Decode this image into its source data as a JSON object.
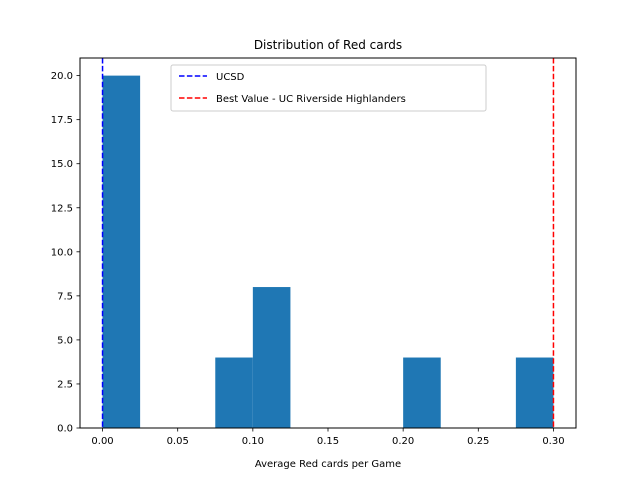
{
  "chart_data": {
    "type": "bar",
    "title": "Distribution of Red cards",
    "xlabel": "Average Red cards per Game",
    "ylabel": "",
    "bins": [
      {
        "start": 0.0,
        "end": 0.025,
        "count": 20
      },
      {
        "start": 0.025,
        "end": 0.05,
        "count": 0
      },
      {
        "start": 0.05,
        "end": 0.075,
        "count": 0
      },
      {
        "start": 0.075,
        "end": 0.1,
        "count": 4
      },
      {
        "start": 0.1,
        "end": 0.125,
        "count": 8
      },
      {
        "start": 0.125,
        "end": 0.15,
        "count": 0
      },
      {
        "start": 0.15,
        "end": 0.175,
        "count": 0
      },
      {
        "start": 0.175,
        "end": 0.2,
        "count": 0
      },
      {
        "start": 0.2,
        "end": 0.225,
        "count": 4
      },
      {
        "start": 0.225,
        "end": 0.25,
        "count": 0
      },
      {
        "start": 0.25,
        "end": 0.275,
        "count": 0
      },
      {
        "start": 0.275,
        "end": 0.3,
        "count": 4
      }
    ],
    "xlim": [
      -0.015,
      0.315
    ],
    "ylim": [
      0,
      21
    ],
    "xticks": [
      "0.00",
      "0.05",
      "0.10",
      "0.15",
      "0.20",
      "0.25",
      "0.30"
    ],
    "xtick_values": [
      0,
      0.05,
      0.1,
      0.15,
      0.2,
      0.25,
      0.3
    ],
    "yticks": [
      "0.0",
      "2.5",
      "5.0",
      "7.5",
      "10.0",
      "12.5",
      "15.0",
      "17.5",
      "20.0"
    ],
    "ytick_values": [
      0,
      2.5,
      5,
      7.5,
      10,
      12.5,
      15,
      17.5,
      20
    ],
    "bar_color": "#1f77b4",
    "reference_lines": [
      {
        "name": "UCSD",
        "x": 0.0,
        "color": "#0000ff",
        "style": "dashed"
      },
      {
        "name": "Best Value - UC Riverside Highlanders",
        "x": 0.3,
        "color": "#ff0000",
        "style": "dashed"
      }
    ],
    "legend_position": "top-center",
    "grid": false
  }
}
